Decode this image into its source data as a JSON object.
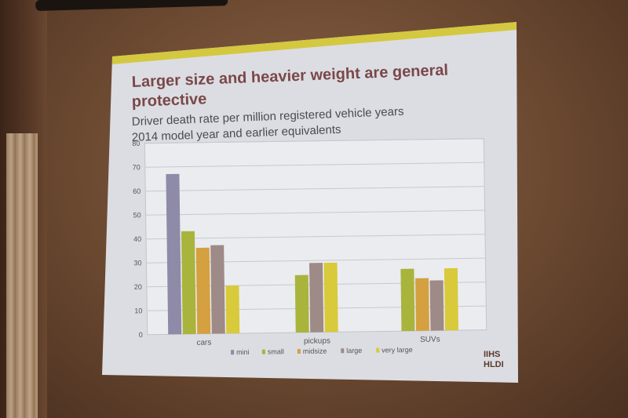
{
  "slide": {
    "title_line1": "Larger size and heavier weight are general",
    "title_line2": "protective",
    "subtitle_line1": "Driver death rate per million registered vehicle years",
    "subtitle_line2": "2014 model year and earlier equivalents",
    "logo_line1": "IIHS",
    "logo_line2": "HLDI"
  },
  "colors": {
    "slide_bg": "#dcdde3",
    "accent_bar": "#d4c840",
    "mini": "#8e8aa8",
    "small": "#a9b43c",
    "midsize": "#d4a040",
    "large": "#9e8a86",
    "very_large": "#d8ca3a"
  },
  "chart_data": {
    "type": "bar",
    "title": "",
    "xlabel": "",
    "ylabel": "",
    "ylim": [
      0,
      80
    ],
    "yticks": [
      0,
      10,
      20,
      30,
      40,
      50,
      60,
      70,
      80
    ],
    "grid": true,
    "legend_position": "bottom",
    "categories": [
      "cars",
      "pickups",
      "SUVs"
    ],
    "series": [
      {
        "name": "mini",
        "color": "#8e8aa8",
        "values": [
          67,
          null,
          null
        ]
      },
      {
        "name": "small",
        "color": "#a9b43c",
        "values": [
          43,
          24,
          26
        ]
      },
      {
        "name": "midsize",
        "color": "#d4a040",
        "values": [
          36,
          null,
          22
        ]
      },
      {
        "name": "large",
        "color": "#9e8a86",
        "values": [
          37,
          29,
          21
        ]
      },
      {
        "name": "very large",
        "color": "#d8ca3a",
        "values": [
          20,
          29,
          26
        ]
      }
    ]
  }
}
